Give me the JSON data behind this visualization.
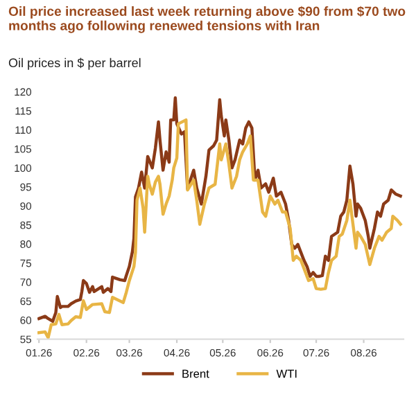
{
  "chart_data": {
    "type": "line",
    "title": "Oil price increased last week returning above $90 from $70 two months ago following renewed tensions with Iran",
    "subtitle": "Oil prices in $ per barrel",
    "xlim": [
      "2025-12-31",
      "2026-08-27"
    ],
    "xticks": [
      {
        "value": "2026-01-01",
        "label": "01.26"
      },
      {
        "value": "2026-02-01",
        "label": "02.26"
      },
      {
        "value": "2026-03-01",
        "label": "03.26"
      },
      {
        "value": "2026-04-01",
        "label": "04.26"
      },
      {
        "value": "2026-05-01",
        "label": "05.26"
      },
      {
        "value": "2026-06-01",
        "label": "06.26"
      },
      {
        "value": "2026-07-01",
        "label": "07.26"
      },
      {
        "value": "2026-08-01",
        "label": "08.26"
      }
    ],
    "ylim": [
      55,
      120
    ],
    "yticks": [
      55,
      60,
      65,
      70,
      75,
      80,
      85,
      90,
      95,
      100,
      105,
      110,
      115,
      120
    ],
    "grid": false,
    "legend": "bottom",
    "marker": "none",
    "line_style": "solid",
    "series": [
      {
        "name": "Brent",
        "color": "#8b3a17",
        "x": [
          "2026-01-01",
          "2026-01-05",
          "2026-01-07",
          "2026-01-10",
          "2026-01-12",
          "2026-01-13",
          "2026-01-15",
          "2026-01-16",
          "2026-01-20",
          "2026-01-22",
          "2026-01-25",
          "2026-01-28",
          "2026-01-29",
          "2026-01-30",
          "2026-02-01",
          "2026-02-03",
          "2026-02-05",
          "2026-02-06",
          "2026-02-11",
          "2026-02-12",
          "2026-02-15",
          "2026-02-17",
          "2026-02-18",
          "2026-02-23",
          "2026-02-26",
          "2026-02-27",
          "2026-03-01",
          "2026-03-03",
          "2026-03-04",
          "2026-03-05",
          "2026-03-07",
          "2026-03-09",
          "2026-03-11",
          "2026-03-13",
          "2026-03-14",
          "2026-03-16",
          "2026-03-18",
          "2026-03-20",
          "2026-03-21",
          "2026-03-23",
          "2026-03-25",
          "2026-03-27",
          "2026-03-28",
          "2026-03-30",
          "2026-03-31",
          "2026-04-01",
          "2026-04-04",
          "2026-04-06",
          "2026-04-08",
          "2026-04-12",
          "2026-04-14",
          "2026-04-17",
          "2026-04-20",
          "2026-04-22",
          "2026-04-25",
          "2026-04-27",
          "2026-04-29",
          "2026-04-30",
          "2026-05-02",
          "2026-05-03",
          "2026-05-05",
          "2026-05-07",
          "2026-05-09",
          "2026-05-12",
          "2026-05-14",
          "2026-05-16",
          "2026-05-18",
          "2026-05-20",
          "2026-05-22",
          "2026-05-24",
          "2026-05-26",
          "2026-05-29",
          "2026-05-31",
          "2026-06-03",
          "2026-06-05",
          "2026-06-08",
          "2026-06-11",
          "2026-06-13",
          "2026-06-15",
          "2026-06-17",
          "2026-06-19",
          "2026-06-21",
          "2026-06-23",
          "2026-06-25",
          "2026-06-27",
          "2026-06-29",
          "2026-07-01",
          "2026-07-03",
          "2026-07-05",
          "2026-07-07",
          "2026-07-09",
          "2026-07-11",
          "2026-07-15",
          "2026-07-17",
          "2026-07-19",
          "2026-07-21",
          "2026-07-23",
          "2026-07-25",
          "2026-07-27",
          "2026-07-28",
          "2026-07-30",
          "2026-08-02",
          "2026-08-04",
          "2026-08-05",
          "2026-08-08",
          "2026-08-10",
          "2026-08-12",
          "2026-08-14",
          "2026-08-17",
          "2026-08-19",
          "2026-08-22",
          "2026-08-25"
        ],
        "values": [
          60.4,
          61,
          60.4,
          59.7,
          62,
          66.2,
          63.3,
          63.6,
          63.6,
          64.3,
          65,
          65.4,
          67.5,
          70.4,
          69.6,
          67.3,
          68.8,
          67.5,
          68.8,
          67.3,
          68.3,
          67.5,
          71.3,
          70.6,
          70.4,
          71.7,
          74.1,
          78,
          81.5,
          92.4,
          94.7,
          98.9,
          94.7,
          103,
          102,
          100,
          105.2,
          112.1,
          107.3,
          99.4,
          104.2,
          101.5,
          112.6,
          112.6,
          118.4,
          111.6,
          108.9,
          109.5,
          94.5,
          99.4,
          94.7,
          90.5,
          97.8,
          104.7,
          105.8,
          107.3,
          117.9,
          113.7,
          108.4,
          112.6,
          107.3,
          100,
          102.1,
          107.3,
          106.3,
          110.5,
          112.1,
          110.5,
          96.8,
          99.4,
          94.7,
          95.8,
          93.6,
          97.3,
          92.6,
          93.6,
          90.5,
          86.2,
          79.9,
          78.9,
          79.9,
          77.8,
          75.7,
          74.1,
          71.5,
          72.5,
          71.5,
          71.5,
          71.7,
          76.8,
          75.7,
          82,
          83.1,
          87.3,
          88.4,
          91.5,
          100.5,
          95.7,
          87.3,
          90.5,
          89.4,
          86.2,
          82,
          78.9,
          84.1,
          88.4,
          87.3,
          90.5,
          91.5,
          94.2,
          93.1,
          92.6
        ]
      },
      {
        "name": "WTI",
        "color": "#e8b545",
        "x": [
          "2026-01-01",
          "2026-01-05",
          "2026-01-07",
          "2026-01-09",
          "2026-01-12",
          "2026-01-14",
          "2026-01-16",
          "2026-01-20",
          "2026-01-22",
          "2026-01-25",
          "2026-01-28",
          "2026-01-30",
          "2026-02-01",
          "2026-02-05",
          "2026-02-11",
          "2026-02-13",
          "2026-02-16",
          "2026-02-18",
          "2026-02-25",
          "2026-02-27",
          "2026-03-01",
          "2026-03-04",
          "2026-03-05",
          "2026-03-06",
          "2026-03-08",
          "2026-03-10",
          "2026-03-11",
          "2026-03-13",
          "2026-03-14",
          "2026-03-16",
          "2026-03-18",
          "2026-03-20",
          "2026-03-21",
          "2026-03-23",
          "2026-03-25",
          "2026-03-27",
          "2026-03-29",
          "2026-03-30",
          "2026-04-01",
          "2026-04-02",
          "2026-04-07",
          "2026-04-08",
          "2026-04-12",
          "2026-04-14",
          "2026-04-16",
          "2026-04-19",
          "2026-04-22",
          "2026-04-26",
          "2026-04-29",
          "2026-04-30",
          "2026-05-03",
          "2026-05-05",
          "2026-05-07",
          "2026-05-10",
          "2026-05-12",
          "2026-05-14",
          "2026-05-17",
          "2026-05-19",
          "2026-05-21",
          "2026-05-24",
          "2026-05-27",
          "2026-05-29",
          "2026-06-01",
          "2026-06-04",
          "2026-06-06",
          "2026-06-09",
          "2026-06-11",
          "2026-06-14",
          "2026-06-16",
          "2026-06-18",
          "2026-06-21",
          "2026-06-23",
          "2026-06-26",
          "2026-06-29",
          "2026-07-01",
          "2026-07-04",
          "2026-07-07",
          "2026-07-09",
          "2026-07-11",
          "2026-07-14",
          "2026-07-16",
          "2026-07-18",
          "2026-07-21",
          "2026-07-23",
          "2026-07-25",
          "2026-07-27",
          "2026-07-28",
          "2026-07-30",
          "2026-08-02",
          "2026-08-05",
          "2026-08-08",
          "2026-08-11",
          "2026-08-13",
          "2026-08-16",
          "2026-08-19",
          "2026-08-20",
          "2026-08-23",
          "2026-08-25"
        ],
        "values": [
          56.7,
          56.9,
          55.4,
          58.8,
          59,
          61.5,
          58.8,
          59,
          59.9,
          60.9,
          60.7,
          65.1,
          62.8,
          64.1,
          64.3,
          62.2,
          62,
          66,
          64.6,
          67.3,
          70.4,
          74.1,
          77.8,
          91.5,
          94.7,
          89.4,
          83.1,
          97.8,
          95.7,
          93.1,
          96.3,
          97.8,
          95.7,
          87.8,
          90.5,
          92.6,
          96.8,
          100,
          102.6,
          111.6,
          112.6,
          94.2,
          96.8,
          91.5,
          85.2,
          90.5,
          94.7,
          95.7,
          106.3,
          102.1,
          106.3,
          101,
          94.7,
          97.8,
          102.1,
          104.2,
          106.3,
          108.4,
          96.8,
          96.8,
          88.4,
          87.3,
          92.6,
          90.5,
          91.5,
          88.4,
          88.4,
          84.1,
          75.7,
          76.8,
          75.7,
          73.6,
          70.4,
          70.9,
          68.3,
          68.1,
          68.3,
          72.5,
          75.7,
          76.8,
          82,
          82.6,
          86.2,
          91.5,
          85.2,
          78.9,
          83.1,
          82,
          79.9,
          74.6,
          78.9,
          82,
          81,
          83.1,
          84.1,
          87.3,
          86.2,
          85.2
        ]
      }
    ]
  }
}
